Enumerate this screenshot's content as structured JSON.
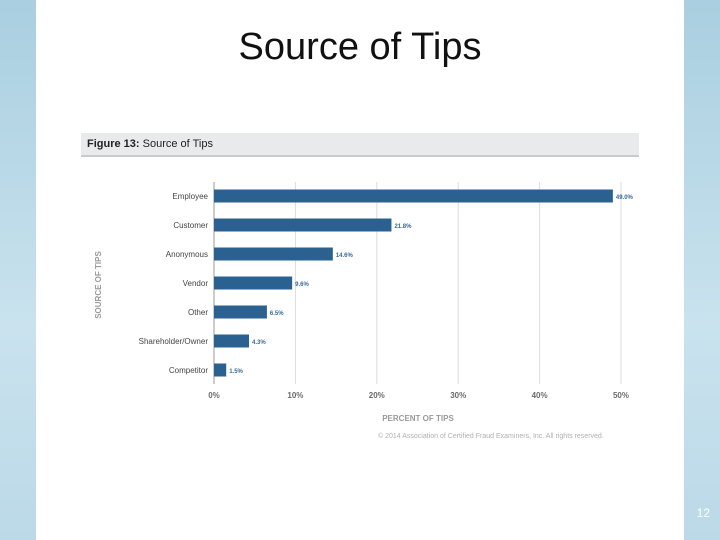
{
  "slide": {
    "title": "Source of Tips",
    "page_number": "12"
  },
  "figure": {
    "label": "Figure 13:",
    "title": "Source of Tips"
  },
  "chart_data": {
    "type": "bar",
    "orientation": "horizontal",
    "categories": [
      "Employee",
      "Customer",
      "Anonymous",
      "Vendor",
      "Other",
      "Shareholder/Owner",
      "Competitor"
    ],
    "values": [
      49.0,
      21.8,
      14.6,
      9.6,
      6.5,
      4.3,
      1.5
    ],
    "value_labels": [
      "49.0%",
      "21.8%",
      "14.6%",
      "9.6%",
      "6.5%",
      "4.3%",
      "1.5%"
    ],
    "xlabel": "PERCENT OF TIPS",
    "ylabel": "SOURCE OF TIPS",
    "xlim": [
      0,
      50
    ],
    "xticks": [
      "0%",
      "10%",
      "20%",
      "30%",
      "40%",
      "50%"
    ],
    "grid": true,
    "bar_color": "#2b6190"
  },
  "copyright": "© 2014 Association of Certified Fraud Examiners, Inc. All rights reserved."
}
